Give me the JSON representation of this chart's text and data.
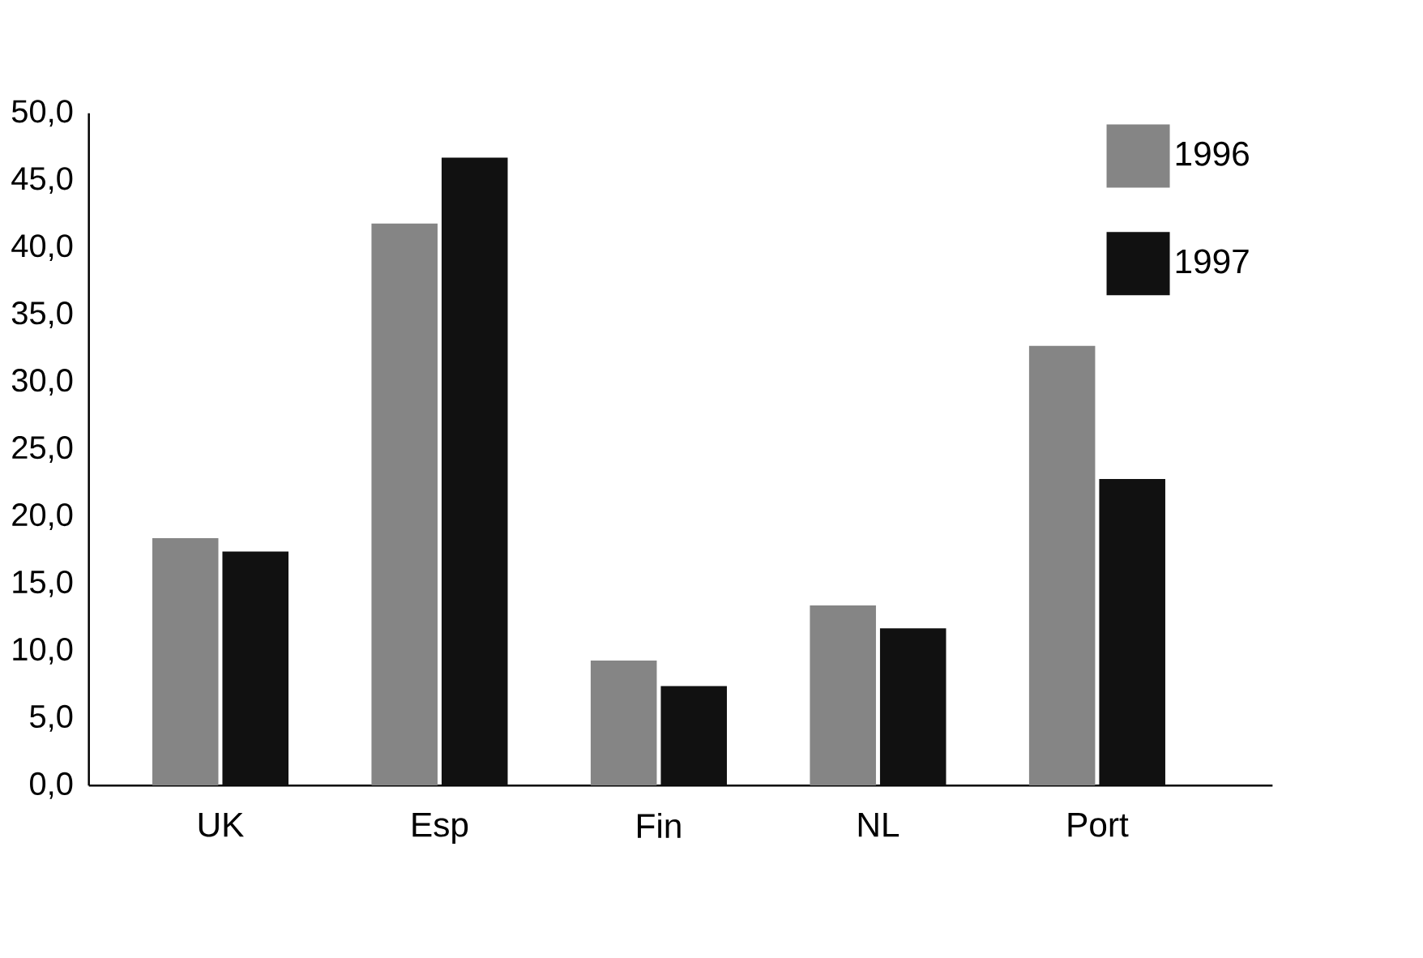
{
  "chart_data": {
    "type": "bar",
    "categories": [
      "UK",
      "Esp",
      "Fin",
      "NL",
      "Port"
    ],
    "series": [
      {
        "name": "1996",
        "color": "#858585",
        "values": [
          18.4,
          41.8,
          9.3,
          13.4,
          32.7
        ]
      },
      {
        "name": "1997",
        "color": "#111111",
        "values": [
          17.4,
          46.7,
          7.4,
          11.7,
          22.8
        ]
      }
    ],
    "ylim": [
      0,
      50
    ],
    "yticks": [
      {
        "value": 0,
        "label": "0,0"
      },
      {
        "value": 5,
        "label": "5,0"
      },
      {
        "value": 10,
        "label": "10,0"
      },
      {
        "value": 15,
        "label": "15,0"
      },
      {
        "value": 20,
        "label": "20,0"
      },
      {
        "value": 25,
        "label": "25,0"
      },
      {
        "value": 30,
        "label": "30,0"
      },
      {
        "value": 35,
        "label": "35,0"
      },
      {
        "value": 40,
        "label": "40,0"
      },
      {
        "value": 45,
        "label": "45,0"
      },
      {
        "value": 50,
        "label": "50,0"
      }
    ],
    "grid": false,
    "legend": "top right"
  }
}
